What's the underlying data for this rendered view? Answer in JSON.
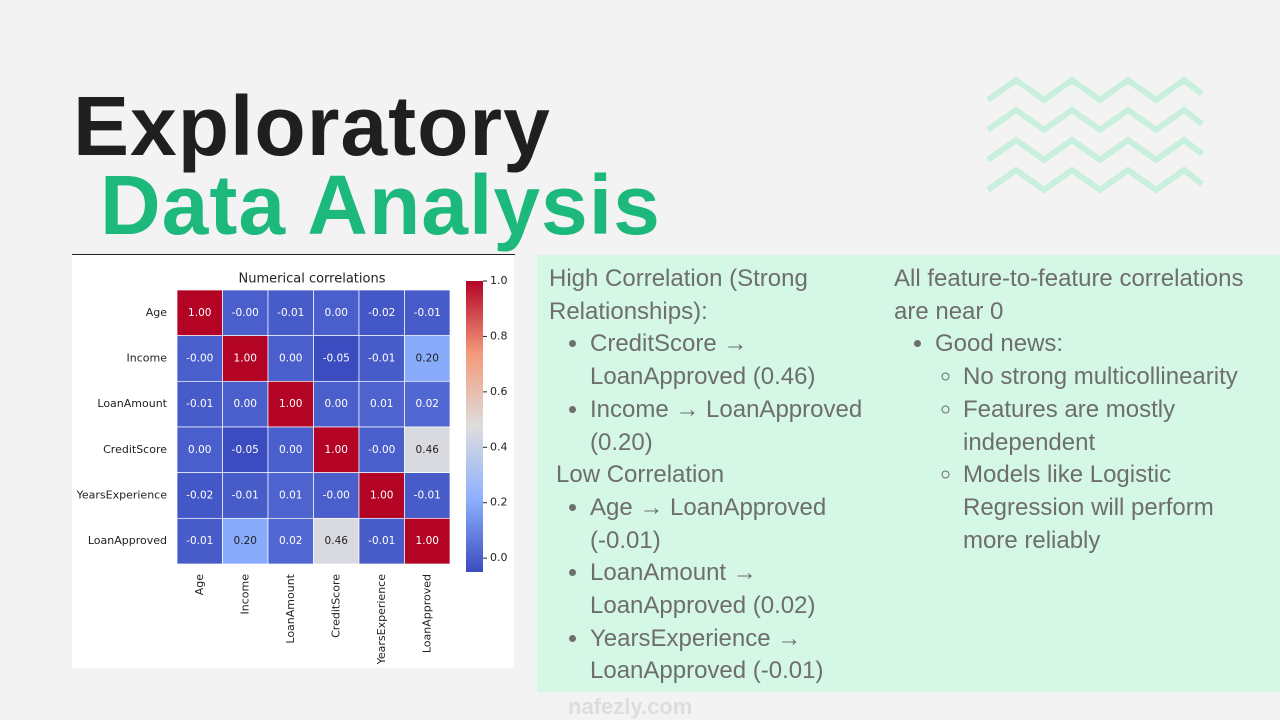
{
  "header": {
    "title_line1": "Exploratory",
    "title_line2": "Data Analysis"
  },
  "chart_data": {
    "type": "heatmap",
    "title": "Numerical correlations",
    "categories": [
      "Age",
      "Income",
      "LoanAmount",
      "CreditScore",
      "YearsExperience",
      "LoanApproved"
    ],
    "values": [
      [
        1,
        0,
        -0.01,
        0,
        -0.02,
        -0.01
      ],
      [
        0,
        1,
        0,
        -0.05,
        -0.01,
        0.2
      ],
      [
        -0.01,
        0,
        1,
        0,
        0.01,
        0.02
      ],
      [
        0,
        -0.05,
        0,
        1,
        0,
        0.46
      ],
      [
        -0.02,
        -0.01,
        0.01,
        0,
        1,
        -0.01
      ],
      [
        -0.01,
        0.2,
        0.02,
        0.46,
        -0.01,
        1
      ]
    ],
    "value_labels": [
      [
        "1.00",
        "-0.00",
        "-0.01",
        "0.00",
        "-0.02",
        "-0.01"
      ],
      [
        "-0.00",
        "1.00",
        "0.00",
        "-0.05",
        "-0.01",
        "0.20"
      ],
      [
        "-0.01",
        "0.00",
        "1.00",
        "0.00",
        "0.01",
        "0.02"
      ],
      [
        "0.00",
        "-0.05",
        "0.00",
        "1.00",
        "-0.00",
        "0.46"
      ],
      [
        "-0.02",
        "-0.01",
        "0.01",
        "-0.00",
        "1.00",
        "-0.01"
      ],
      [
        "-0.01",
        "0.20",
        "0.02",
        "0.46",
        "-0.01",
        "1.00"
      ]
    ],
    "colormap": [
      "#3b4cc0",
      "#8db0fe",
      "#dddddd",
      "#f49a7b",
      "#b40426"
    ],
    "clim": [
      -0.05,
      1
    ],
    "cticks": [
      {
        "value": 0,
        "label": "0.0"
      },
      {
        "value": 0.2,
        "label": "0.2"
      },
      {
        "value": 0.4,
        "label": "0.4"
      },
      {
        "value": 0.6,
        "label": "0.6"
      },
      {
        "value": 0.8,
        "label": "0.8"
      },
      {
        "value": 1,
        "label": "1.0"
      }
    ]
  },
  "notes": {
    "left": [
      {
        "heading": "High Correlation (Strong Relationships):",
        "items": [
          "CreditScore → LoanApproved (0.46)",
          "Income → LoanApproved (0.20)"
        ]
      },
      {
        "heading": "Low Correlation",
        "items": [
          "Age → LoanApproved (-0.01)",
          "LoanAmount → LoanApproved (0.02)",
          "YearsExperience → LoanApproved (-0.01)"
        ]
      }
    ],
    "right": {
      "heading": "All feature-to-feature correlations are near 0",
      "bullet": "Good news:",
      "items": [
        "No strong multicollinearity",
        "Features are mostly independent",
        "Models like Logistic Regression will perform more reliably"
      ]
    }
  },
  "watermark": "nafezly.com"
}
